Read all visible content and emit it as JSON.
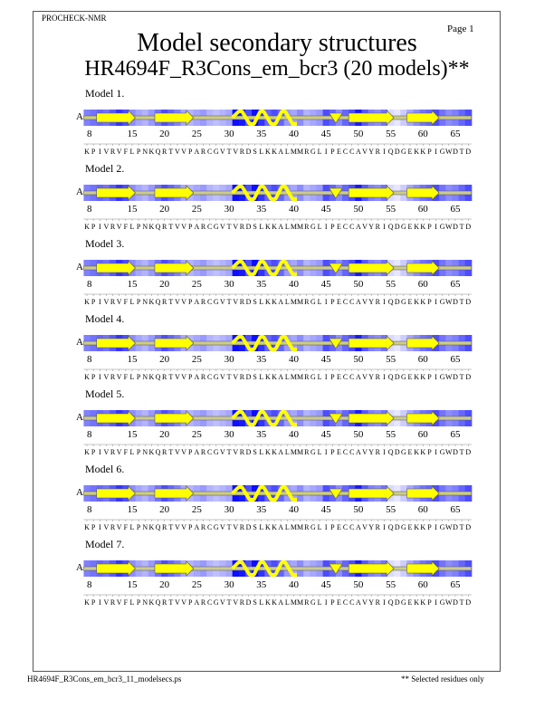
{
  "header": {
    "program": "PROCHECK-NMR",
    "page": "Page  1",
    "title": "Model secondary structures",
    "subtitle": "HR4694F_R3Cons_em_bcr3 (20 models)**"
  },
  "footer": {
    "filename": "HR4694F_R3Cons_em_bcr3_11_modelsecs.ps",
    "note": "** Selected residues only"
  },
  "chain": "A",
  "first_residue": 8,
  "sequence": "KPIVRVFLPNKQRTVVPARCGVTVRDSLKKALMMRGLIPECCAVYRIQDGEKKPIGWDTD",
  "ticks": [
    8,
    15,
    20,
    25,
    30,
    35,
    40,
    45,
    50,
    55,
    60,
    65
  ],
  "colors": {
    "strand": "#ffff00",
    "helix": "#ffff00",
    "shade_max": "#0000ff"
  },
  "elements": [
    {
      "type": "strand",
      "start": 10,
      "end": 15
    },
    {
      "type": "strand",
      "start": 19,
      "end": 24
    },
    {
      "type": "helix",
      "start": 31,
      "end": 40
    },
    {
      "type": "turn",
      "start": 46,
      "end": 47
    },
    {
      "type": "strand",
      "start": 49,
      "end": 55
    },
    {
      "type": "strand",
      "start": 58,
      "end": 62
    }
  ],
  "shading": [
    0.5,
    0.55,
    0.6,
    0.55,
    0.65,
    0.8,
    0.7,
    0.45,
    0.35,
    0.3,
    0.4,
    0.55,
    0.7,
    0.6,
    0.5,
    0.35,
    0.3,
    0.35,
    0.4,
    0.3,
    0.25,
    0.3,
    0.35,
    0.95,
    0.9,
    0.7,
    0.95,
    0.8,
    0.6,
    0.7,
    0.6,
    0.4,
    0.35,
    0.45,
    0.3,
    0.35,
    0.4,
    0.7,
    0.6,
    0.45,
    0.6,
    0.7,
    0.9,
    0.65,
    0.5,
    0.45,
    0.55,
    0.15,
    0.1,
    0.2,
    0.35,
    0.45,
    0.55,
    0.6,
    0.7,
    0.55,
    0.45,
    0.5,
    0.6,
    0.7
  ],
  "models": [
    {
      "label": "Model  1."
    },
    {
      "label": "Model  2."
    },
    {
      "label": "Model  3."
    },
    {
      "label": "Model  4."
    },
    {
      "label": "Model  5."
    },
    {
      "label": "Model  6."
    },
    {
      "label": "Model  7."
    }
  ]
}
